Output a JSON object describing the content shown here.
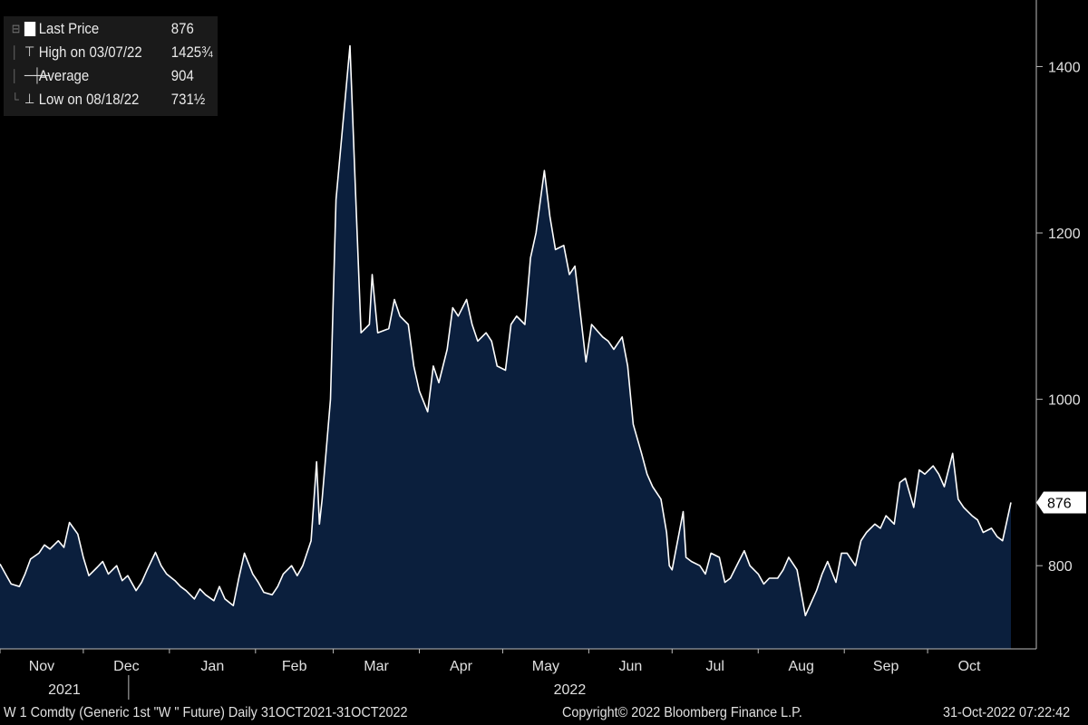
{
  "legend": {
    "last_price_label": "Last Price",
    "last_price_value": "876",
    "high_label": "High on 03/07/22",
    "high_value": "1425¾",
    "average_label": "Average",
    "average_value": "904",
    "low_label": "Low on 08/18/22",
    "low_value": "731½"
  },
  "footer": {
    "left": "W 1 Comdty (Generic 1st \"W \" Future)  Daily 31OCT2021-31OCT2022",
    "center": "Copyright© 2022 Bloomberg Finance L.P.",
    "right": "31-Oct-2022 07:22:42"
  },
  "last_price_tag": "876",
  "colors": {
    "fill": "#0b1f3d",
    "line": "#ffffff",
    "background": "#000000"
  },
  "chart_data": {
    "type": "area",
    "ylim": [
      700,
      1480
    ],
    "yticks": [
      800,
      1000,
      1200,
      1400
    ],
    "months": [
      "Nov",
      "Dec",
      "Jan",
      "Feb",
      "Mar",
      "Apr",
      "May",
      "Jun",
      "Jul",
      "Aug",
      "Sep",
      "Oct"
    ],
    "years": [
      "2021",
      "2022"
    ],
    "x_range": [
      "2021-11-01",
      "2022-10-31"
    ],
    "points": [
      [
        "2021-11-01",
        802
      ],
      [
        "2021-11-03",
        790
      ],
      [
        "2021-11-05",
        778
      ],
      [
        "2021-11-08",
        775
      ],
      [
        "2021-11-10",
        790
      ],
      [
        "2021-11-12",
        808
      ],
      [
        "2021-11-15",
        815
      ],
      [
        "2021-11-17",
        825
      ],
      [
        "2021-11-19",
        820
      ],
      [
        "2021-11-22",
        830
      ],
      [
        "2021-11-24",
        822
      ],
      [
        "2021-11-26",
        852
      ],
      [
        "2021-11-29",
        838
      ],
      [
        "2021-12-01",
        810
      ],
      [
        "2021-12-03",
        788
      ],
      [
        "2021-12-06",
        798
      ],
      [
        "2021-12-08",
        805
      ],
      [
        "2021-12-10",
        790
      ],
      [
        "2021-12-13",
        800
      ],
      [
        "2021-12-15",
        782
      ],
      [
        "2021-12-17",
        788
      ],
      [
        "2021-12-20",
        770
      ],
      [
        "2021-12-22",
        780
      ],
      [
        "2021-12-24",
        795
      ],
      [
        "2021-12-27",
        816
      ],
      [
        "2021-12-29",
        800
      ],
      [
        "2021-12-31",
        790
      ],
      [
        "2022-01-03",
        782
      ],
      [
        "2022-01-05",
        775
      ],
      [
        "2022-01-07",
        770
      ],
      [
        "2022-01-10",
        760
      ],
      [
        "2022-01-12",
        772
      ],
      [
        "2022-01-14",
        765
      ],
      [
        "2022-01-17",
        758
      ],
      [
        "2022-01-19",
        775
      ],
      [
        "2022-01-21",
        760
      ],
      [
        "2022-01-24",
        752
      ],
      [
        "2022-01-26",
        785
      ],
      [
        "2022-01-28",
        815
      ],
      [
        "2022-01-31",
        790
      ],
      [
        "2022-02-02",
        780
      ],
      [
        "2022-02-04",
        768
      ],
      [
        "2022-02-07",
        765
      ],
      [
        "2022-02-09",
        775
      ],
      [
        "2022-02-11",
        790
      ],
      [
        "2022-02-14",
        800
      ],
      [
        "2022-02-16",
        788
      ],
      [
        "2022-02-18",
        800
      ],
      [
        "2022-02-21",
        830
      ],
      [
        "2022-02-23",
        925
      ],
      [
        "2022-02-24",
        850
      ],
      [
        "2022-02-25",
        880
      ],
      [
        "2022-02-28",
        1000
      ],
      [
        "2022-03-02",
        1240
      ],
      [
        "2022-03-07",
        1425
      ],
      [
        "2022-03-09",
        1250
      ],
      [
        "2022-03-11",
        1080
      ],
      [
        "2022-03-14",
        1090
      ],
      [
        "2022-03-15",
        1150
      ],
      [
        "2022-03-17",
        1080
      ],
      [
        "2022-03-21",
        1085
      ],
      [
        "2022-03-23",
        1120
      ],
      [
        "2022-03-25",
        1100
      ],
      [
        "2022-03-28",
        1090
      ],
      [
        "2022-03-30",
        1040
      ],
      [
        "2022-04-01",
        1010
      ],
      [
        "2022-04-04",
        985
      ],
      [
        "2022-04-06",
        1040
      ],
      [
        "2022-04-08",
        1020
      ],
      [
        "2022-04-11",
        1060
      ],
      [
        "2022-04-13",
        1110
      ],
      [
        "2022-04-15",
        1100
      ],
      [
        "2022-04-18",
        1120
      ],
      [
        "2022-04-20",
        1090
      ],
      [
        "2022-04-22",
        1070
      ],
      [
        "2022-04-25",
        1080
      ],
      [
        "2022-04-27",
        1070
      ],
      [
        "2022-04-29",
        1040
      ],
      [
        "2022-05-02",
        1035
      ],
      [
        "2022-05-04",
        1090
      ],
      [
        "2022-05-06",
        1100
      ],
      [
        "2022-05-09",
        1090
      ],
      [
        "2022-05-11",
        1170
      ],
      [
        "2022-05-13",
        1200
      ],
      [
        "2022-05-16",
        1275
      ],
      [
        "2022-05-18",
        1220
      ],
      [
        "2022-05-20",
        1180
      ],
      [
        "2022-05-23",
        1185
      ],
      [
        "2022-05-25",
        1150
      ],
      [
        "2022-05-27",
        1160
      ],
      [
        "2022-05-31",
        1045
      ],
      [
        "2022-06-02",
        1090
      ],
      [
        "2022-06-06",
        1075
      ],
      [
        "2022-06-08",
        1070
      ],
      [
        "2022-06-10",
        1060
      ],
      [
        "2022-06-13",
        1075
      ],
      [
        "2022-06-15",
        1040
      ],
      [
        "2022-06-17",
        970
      ],
      [
        "2022-06-20",
        935
      ],
      [
        "2022-06-22",
        910
      ],
      [
        "2022-06-24",
        895
      ],
      [
        "2022-06-27",
        880
      ],
      [
        "2022-06-29",
        840
      ],
      [
        "2022-06-30",
        800
      ],
      [
        "2022-07-01",
        795
      ],
      [
        "2022-07-05",
        865
      ],
      [
        "2022-07-06",
        810
      ],
      [
        "2022-07-08",
        805
      ],
      [
        "2022-07-11",
        800
      ],
      [
        "2022-07-13",
        790
      ],
      [
        "2022-07-15",
        815
      ],
      [
        "2022-07-18",
        810
      ],
      [
        "2022-07-20",
        780
      ],
      [
        "2022-07-22",
        785
      ],
      [
        "2022-07-25",
        805
      ],
      [
        "2022-07-27",
        818
      ],
      [
        "2022-07-29",
        800
      ],
      [
        "2022-08-01",
        790
      ],
      [
        "2022-08-03",
        778
      ],
      [
        "2022-08-05",
        785
      ],
      [
        "2022-08-08",
        785
      ],
      [
        "2022-08-10",
        795
      ],
      [
        "2022-08-12",
        810
      ],
      [
        "2022-08-15",
        795
      ],
      [
        "2022-08-18",
        740
      ],
      [
        "2022-08-22",
        770
      ],
      [
        "2022-08-24",
        790
      ],
      [
        "2022-08-26",
        805
      ],
      [
        "2022-08-29",
        780
      ],
      [
        "2022-08-31",
        815
      ],
      [
        "2022-09-02",
        815
      ],
      [
        "2022-09-05",
        800
      ],
      [
        "2022-09-07",
        830
      ],
      [
        "2022-09-09",
        840
      ],
      [
        "2022-09-12",
        850
      ],
      [
        "2022-09-14",
        845
      ],
      [
        "2022-09-16",
        860
      ],
      [
        "2022-09-19",
        850
      ],
      [
        "2022-09-21",
        900
      ],
      [
        "2022-09-23",
        905
      ],
      [
        "2022-09-26",
        870
      ],
      [
        "2022-09-28",
        915
      ],
      [
        "2022-09-30",
        910
      ],
      [
        "2022-10-03",
        920
      ],
      [
        "2022-10-05",
        910
      ],
      [
        "2022-10-07",
        895
      ],
      [
        "2022-10-10",
        935
      ],
      [
        "2022-10-12",
        880
      ],
      [
        "2022-10-14",
        870
      ],
      [
        "2022-10-17",
        860
      ],
      [
        "2022-10-19",
        855
      ],
      [
        "2022-10-21",
        840
      ],
      [
        "2022-10-24",
        845
      ],
      [
        "2022-10-26",
        835
      ],
      [
        "2022-10-28",
        830
      ],
      [
        "2022-10-31",
        876
      ]
    ]
  }
}
